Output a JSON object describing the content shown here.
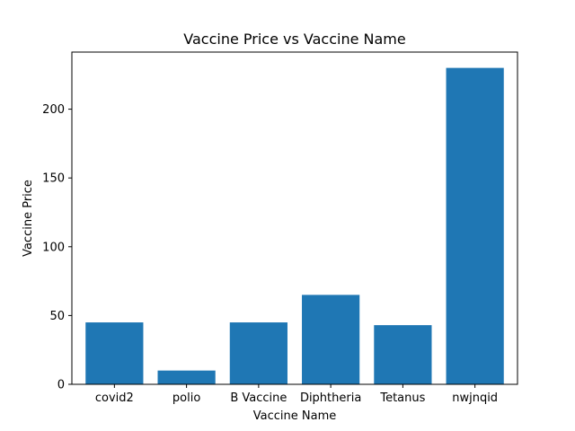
{
  "chart_data": {
    "type": "bar",
    "title": "Vaccine Price vs Vaccine Name",
    "xlabel": "Vaccine Name",
    "ylabel": "Vaccine Price",
    "categories": [
      "covid2",
      "polio",
      "B Vaccine",
      "Diphtheria",
      "Tetanus",
      "nwjnqid"
    ],
    "values": [
      45,
      10,
      45,
      65,
      43,
      230
    ],
    "ylim": [
      0,
      241.5
    ],
    "yticks": [
      0,
      50,
      100,
      150,
      200
    ],
    "bar_color": "#1f77b4",
    "grid": false,
    "legend": "none"
  }
}
